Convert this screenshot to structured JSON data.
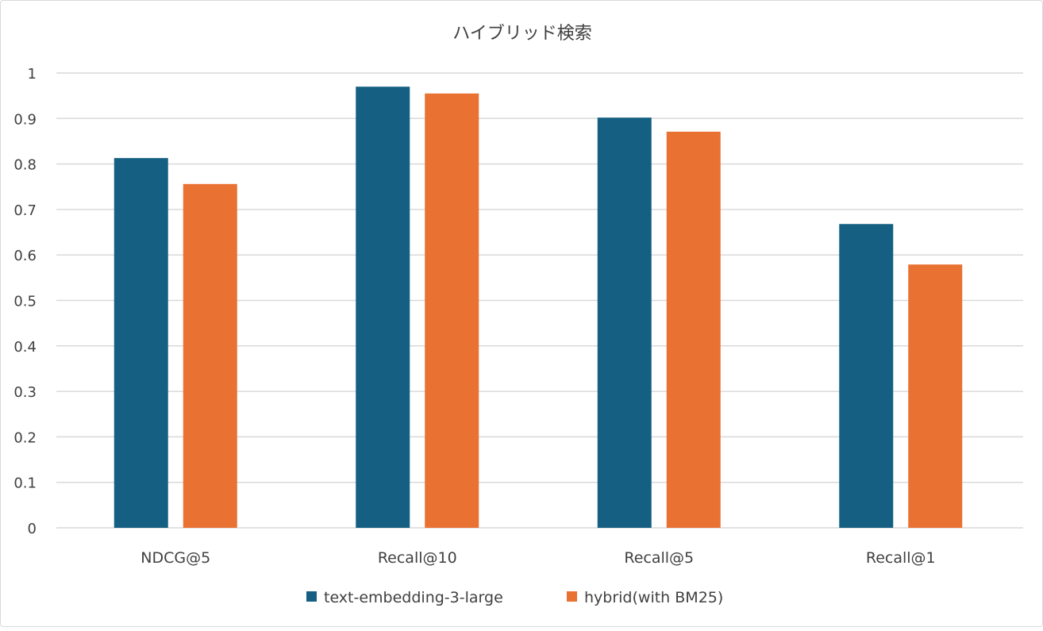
{
  "chart_data": {
    "type": "bar",
    "title": "ハイブリッド検索",
    "categories": [
      "NDCG@5",
      "Recall@10",
      "Recall@5",
      "Recall@1"
    ],
    "series": [
      {
        "name": "text-embedding-3-large",
        "color": "#156082",
        "values": [
          0.813,
          0.97,
          0.902,
          0.668
        ]
      },
      {
        "name": "hybrid(with BM25)",
        "color": "#E97132",
        "values": [
          0.756,
          0.955,
          0.871,
          0.579
        ]
      }
    ],
    "ylim": [
      0,
      1
    ],
    "yticks": [
      "0",
      "0.1",
      "0.2",
      "0.3",
      "0.4",
      "0.5",
      "0.6",
      "0.7",
      "0.8",
      "0.9",
      "1"
    ],
    "grid": true,
    "legend": "bottom"
  }
}
